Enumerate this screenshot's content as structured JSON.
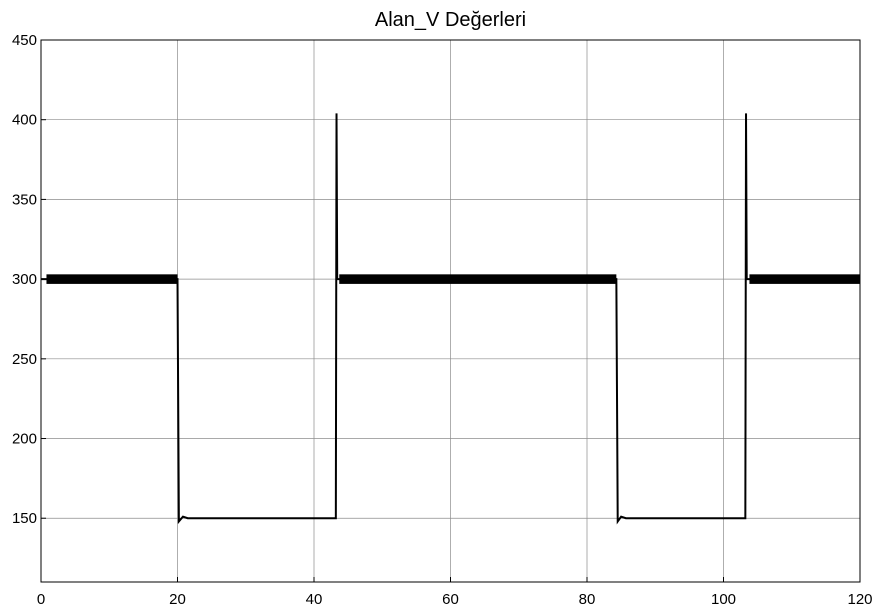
{
  "chart_data": {
    "type": "line",
    "title": "Alan_V Değerleri",
    "xlabel": "",
    "ylabel": "",
    "xlim": [
      0,
      120
    ],
    "ylim": [
      110,
      450
    ],
    "x_ticks": [
      0,
      20,
      40,
      60,
      80,
      100,
      120
    ],
    "y_ticks": [
      150,
      200,
      250,
      300,
      350,
      400,
      450
    ],
    "grid": true,
    "series": [
      {
        "color": "#000000",
        "x": [
          0,
          20.0,
          20.2,
          20.8,
          21.5,
          43.2,
          43.3,
          43.4,
          43.7,
          84.3,
          84.5,
          85.0,
          85.7,
          103.2,
          103.3,
          103.4,
          103.8,
          120
        ],
        "y": [
          300,
          300,
          148,
          151,
          150,
          150,
          404,
          300,
          300,
          300,
          148,
          151,
          150,
          150,
          404,
          300,
          300,
          300
        ]
      }
    ],
    "ripple_segments": [
      {
        "x_start": 0.8,
        "x_end": 20.0,
        "center": 300,
        "amplitude": 3
      },
      {
        "x_start": 43.7,
        "x_end": 84.3,
        "center": 300,
        "amplitude": 3
      },
      {
        "x_start": 103.8,
        "x_end": 120,
        "center": 300,
        "amplitude": 3
      }
    ]
  }
}
